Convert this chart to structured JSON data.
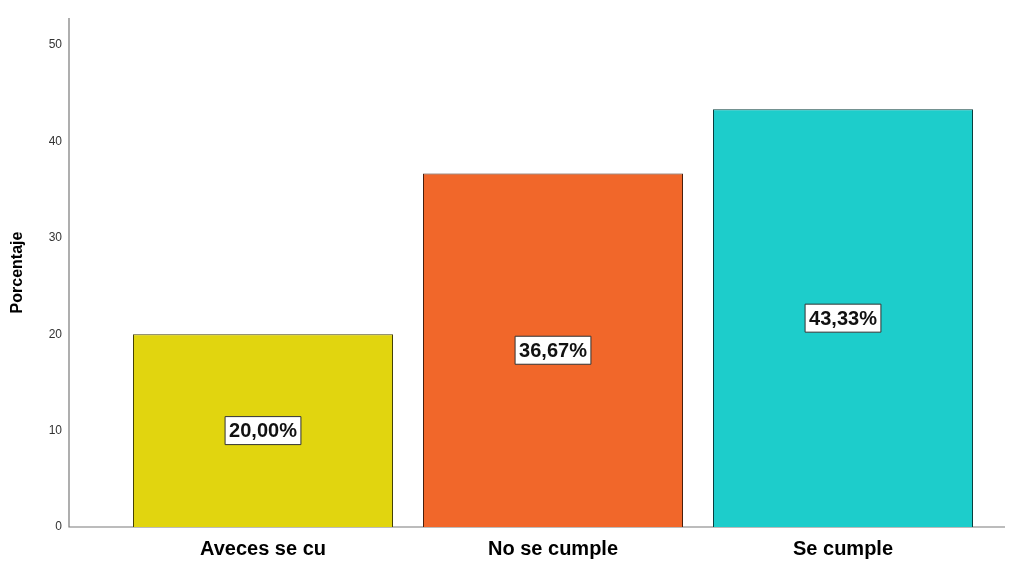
{
  "chart_data": {
    "type": "bar",
    "ylabel": "Porcentaje",
    "categories": [
      "Aveces se cu",
      "No se cumple",
      "Se cumple"
    ],
    "values": [
      20.0,
      36.67,
      43.33
    ],
    "colors": [
      "#e1d50f",
      "#f1672a",
      "#1dcdcb"
    ],
    "value_labels": [
      "20,00%",
      "36,67%",
      "43,33%"
    ],
    "ylim": [
      0,
      52.8
    ],
    "yticks": [
      0,
      10,
      20,
      30,
      40,
      50
    ],
    "grid": false,
    "legend": false
  }
}
